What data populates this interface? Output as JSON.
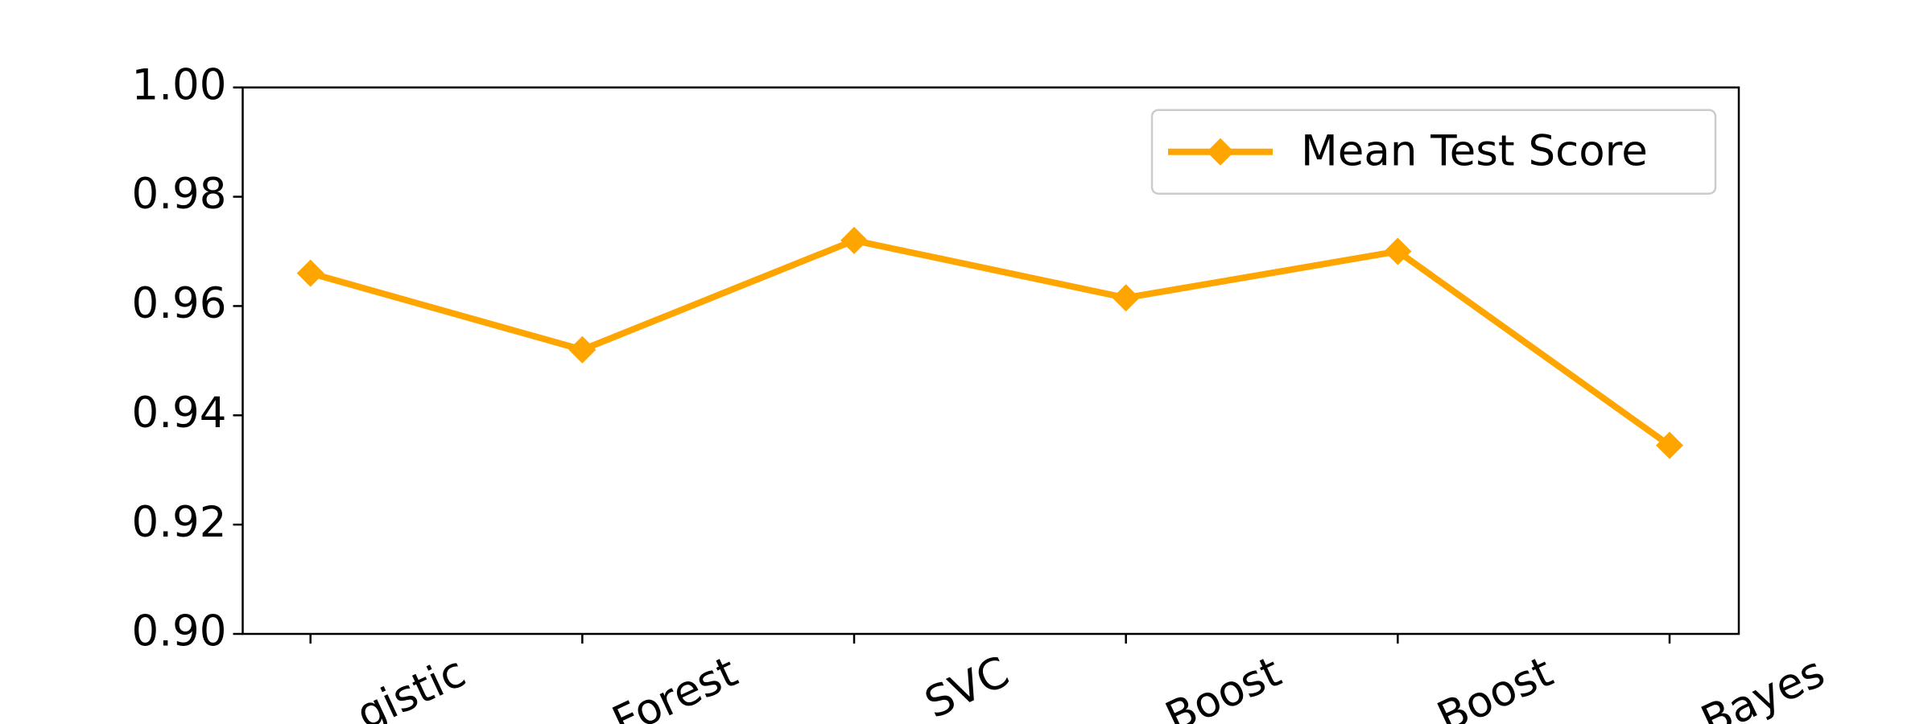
{
  "chart_data": {
    "type": "line",
    "categories": [
      "gistic",
      "Forest",
      "SVC",
      "Boost",
      "Boost",
      "Bayes"
    ],
    "series": [
      {
        "name": "Mean Test Score",
        "color": "#ffa500",
        "values": [
          0.966,
          0.952,
          0.972,
          0.9615,
          0.97,
          0.9345
        ]
      }
    ],
    "ylim": [
      0.9,
      1.0
    ],
    "yticks": [
      {
        "value": 0.9,
        "label": "0.90"
      },
      {
        "value": 0.92,
        "label": "0.92"
      },
      {
        "value": 0.94,
        "label": "0.94"
      },
      {
        "value": 0.96,
        "label": "0.96"
      },
      {
        "value": 0.98,
        "label": "0.98"
      },
      {
        "value": 1.0,
        "label": "1.00"
      }
    ],
    "legend": "upper right",
    "grid": false
  }
}
